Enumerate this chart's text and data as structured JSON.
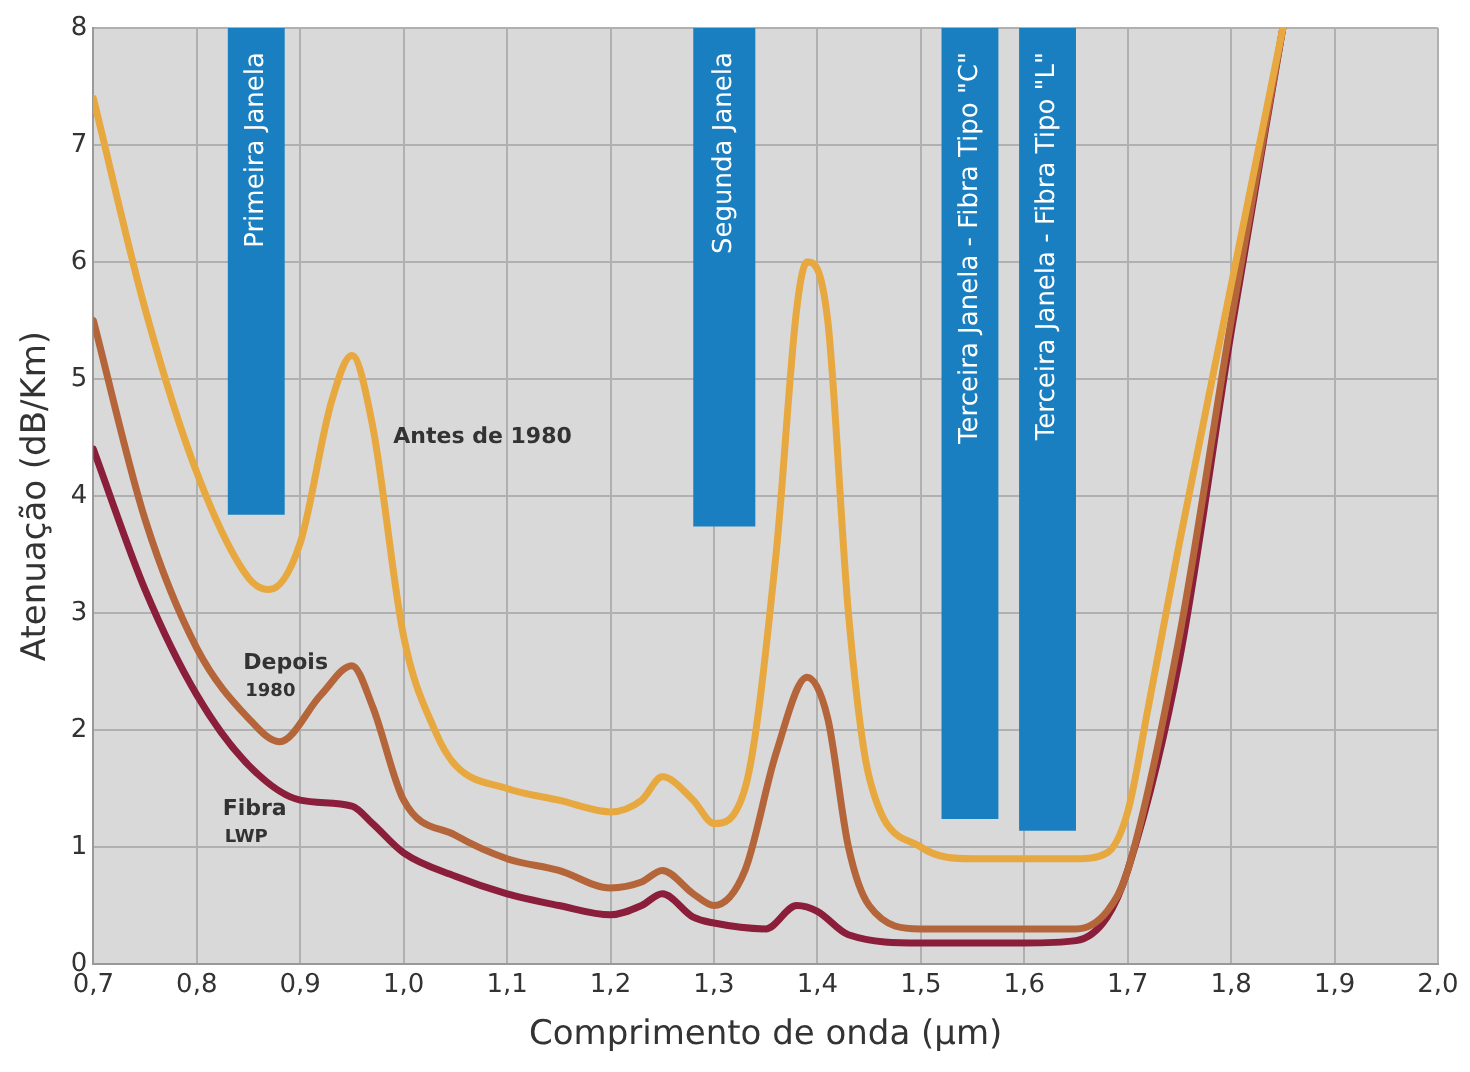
{
  "chart_data": {
    "type": "line",
    "xlabel": "Comprimento de onda (µm)",
    "ylabel": "Atenuação (dB/Km)",
    "xlim": [
      0.7,
      2.0
    ],
    "xticks": [
      {
        "value": 0.7,
        "label": "0,7"
      },
      {
        "value": 0.8,
        "label": "0,8"
      },
      {
        "value": 0.9,
        "label": "0,9"
      },
      {
        "value": 1.0,
        "label": "1,0"
      },
      {
        "value": 1.1,
        "label": "1,1"
      },
      {
        "value": 1.2,
        "label": "1,2"
      },
      {
        "value": 1.3,
        "label": "1,3"
      },
      {
        "value": 1.4,
        "label": "1,4"
      },
      {
        "value": 1.5,
        "label": "1,5"
      },
      {
        "value": 1.6,
        "label": "1,6"
      },
      {
        "value": 1.7,
        "label": "1,7"
      },
      {
        "value": 1.8,
        "label": "1,8"
      },
      {
        "value": 1.9,
        "label": "1,9"
      },
      {
        "value": 2.0,
        "label": "2,0"
      }
    ],
    "ylim": [
      0,
      8
    ],
    "yticks": [
      0,
      1,
      2,
      3,
      4,
      5,
      6,
      7,
      8
    ],
    "grid": true,
    "legend": false,
    "marker": "none",
    "line_style": "solid",
    "series": [
      {
        "name": "Antes de 1980",
        "color": "#e8a840",
        "x": [
          0.7,
          0.75,
          0.8,
          0.85,
          0.87,
          0.9,
          0.93,
          0.95,
          0.97,
          1.0,
          1.03,
          1.05,
          1.1,
          1.15,
          1.2,
          1.23,
          1.25,
          1.28,
          1.3,
          1.33,
          1.36,
          1.38,
          1.39,
          1.41,
          1.43,
          1.45,
          1.5,
          1.55,
          1.6,
          1.65,
          1.68,
          1.7,
          1.72,
          1.75,
          1.8,
          1.85
        ],
        "values": [
          7.4,
          5.6,
          4.2,
          3.3,
          3.2,
          3.6,
          4.8,
          5.2,
          4.6,
          2.8,
          2.0,
          1.7,
          1.5,
          1.4,
          1.3,
          1.4,
          1.6,
          1.4,
          1.2,
          1.5,
          3.5,
          5.6,
          6.0,
          5.5,
          3.0,
          1.6,
          1.0,
          0.9,
          0.9,
          0.9,
          0.95,
          1.3,
          2.2,
          3.6,
          5.8,
          8.0
        ]
      },
      {
        "name": "Depois 1980",
        "color": "#b5653a",
        "x": [
          0.7,
          0.75,
          0.8,
          0.85,
          0.88,
          0.92,
          0.95,
          0.97,
          1.0,
          1.05,
          1.1,
          1.15,
          1.2,
          1.23,
          1.25,
          1.28,
          1.3,
          1.33,
          1.36,
          1.39,
          1.41,
          1.43,
          1.45,
          1.5,
          1.6,
          1.65,
          1.68,
          1.7,
          1.75,
          1.8,
          1.85
        ],
        "values": [
          5.5,
          3.8,
          2.7,
          2.1,
          1.9,
          2.3,
          2.55,
          2.2,
          1.4,
          1.1,
          0.9,
          0.8,
          0.65,
          0.7,
          0.8,
          0.6,
          0.5,
          0.8,
          1.8,
          2.45,
          2.1,
          1.0,
          0.5,
          0.3,
          0.3,
          0.3,
          0.45,
          0.8,
          2.8,
          5.5,
          8.0
        ]
      },
      {
        "name": "Fibra LWP",
        "color": "#8b1e3a",
        "x": [
          0.7,
          0.75,
          0.8,
          0.85,
          0.9,
          0.95,
          0.97,
          1.0,
          1.05,
          1.1,
          1.15,
          1.2,
          1.23,
          1.25,
          1.28,
          1.3,
          1.35,
          1.38,
          1.4,
          1.43,
          1.5,
          1.6,
          1.65,
          1.68,
          1.7,
          1.75,
          1.8,
          1.85
        ],
        "values": [
          4.4,
          3.2,
          2.3,
          1.7,
          1.4,
          1.35,
          1.2,
          0.95,
          0.75,
          0.6,
          0.5,
          0.42,
          0.5,
          0.6,
          0.4,
          0.35,
          0.3,
          0.5,
          0.45,
          0.25,
          0.18,
          0.18,
          0.2,
          0.4,
          0.8,
          2.6,
          5.4,
          8.0
        ]
      }
    ],
    "bands": [
      {
        "axis": "x",
        "from": 0.83,
        "to": 0.885,
        "label": "Primeira Janela",
        "color": "#1a7fc1"
      },
      {
        "axis": "x",
        "from": 1.28,
        "to": 1.34,
        "label": "Segunda Janela",
        "color": "#1a7fc1"
      },
      {
        "axis": "x",
        "from": 1.52,
        "to": 1.575,
        "label": "Terceira Janela - Fibra Tipo \"C\"",
        "color": "#1a7fc1"
      },
      {
        "axis": "x",
        "from": 1.595,
        "to": 1.65,
        "label": "Terceira Janela - Fibra Tipo \"L\"",
        "color": "#1a7fc1"
      }
    ]
  }
}
